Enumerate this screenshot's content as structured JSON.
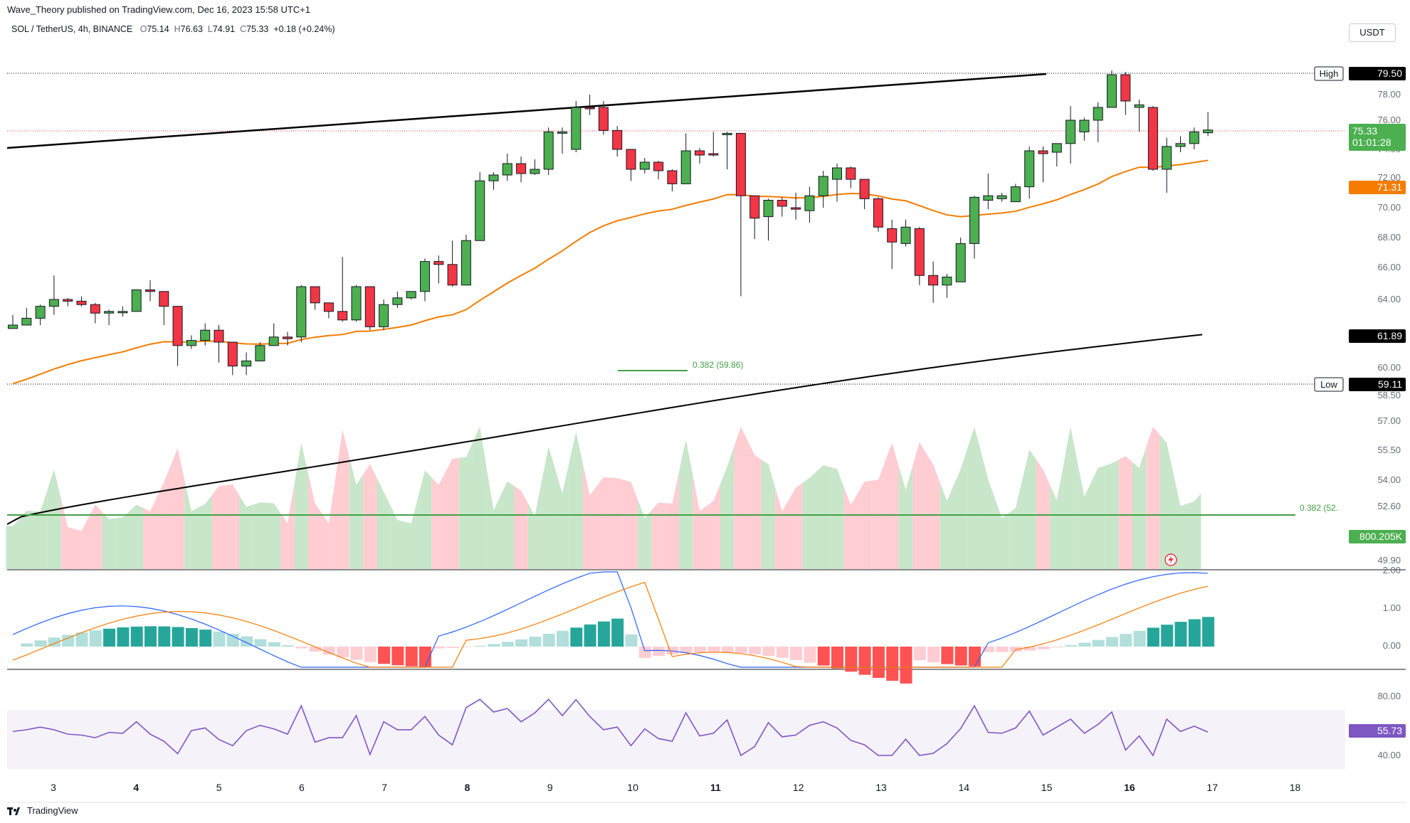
{
  "header": {
    "published": "Wave_Theory published on TradingView.com, Dec 16, 2023 15:58 UTC+1",
    "symbol": "SOL / TetherUS, 4h, BINANCE",
    "open_label": "O",
    "open": "75.14",
    "high_label": "H",
    "high": "76.63",
    "low_label": "L",
    "low": "74.91",
    "close_label": "C",
    "close": "75.33",
    "change": "+0.18 (+0.24%)",
    "currency": "USDT"
  },
  "footer": {
    "brand": "TradingView"
  },
  "colors": {
    "up": "#4caf50",
    "down": "#f23645",
    "ema_orange": "#f57c00",
    "ema_black": "#000000",
    "fib_green": "#43a047",
    "macd_blue": "#2962ff",
    "rsi_purple": "#7e57c2",
    "hist_up": "#26a69a",
    "hist_up_light": "#b2dfdb",
    "hist_down": "#ff5252",
    "hist_down_light": "#ffcdd2"
  },
  "chart_data": {
    "type": "candlestick",
    "title": "",
    "price_axis": {
      "ticks": [
        "78.00",
        "76.00",
        "74.00",
        "72.00",
        "70.00",
        "68.00",
        "66.00",
        "64.00",
        "60.00",
        "58.50",
        "57.00",
        "55.50",
        "54.00",
        "52.60",
        "49.90"
      ],
      "tick_values": [
        78,
        76,
        74,
        72,
        70,
        68,
        66,
        64,
        60,
        58.5,
        57,
        55.5,
        54,
        52.6,
        49.9
      ]
    },
    "x_axis": {
      "tick_labels": [
        "3",
        "4",
        "5",
        "6",
        "7",
        "8",
        "9",
        "10",
        "11",
        "12",
        "13",
        "14",
        "15",
        "16",
        "17",
        "18"
      ],
      "bold_labels": [
        "4",
        "8",
        "11",
        "16"
      ]
    },
    "ohlc": [
      [
        62.5,
        62.3,
        63.1,
        62.3
      ],
      [
        62.9,
        62.5,
        63.5,
        62.5
      ],
      [
        63.6,
        62.9,
        63.7,
        62.5
      ],
      [
        64.0,
        63.6,
        65.5,
        63.1
      ],
      [
        63.9,
        64.0,
        64.1,
        63.6
      ],
      [
        63.7,
        63.9,
        64.2,
        63.6
      ],
      [
        63.2,
        63.7,
        63.8,
        62.6
      ],
      [
        63.3,
        63.2,
        63.4,
        62.5
      ],
      [
        63.3,
        63.3,
        63.6,
        63.0
      ],
      [
        64.6,
        63.3,
        64.6,
        63.3
      ],
      [
        64.5,
        64.6,
        65.2,
        63.9
      ],
      [
        63.6,
        64.5,
        64.5,
        62.5
      ],
      [
        61.3,
        63.6,
        63.6,
        60.1
      ],
      [
        61.6,
        61.3,
        61.9,
        61.1
      ],
      [
        62.2,
        61.6,
        62.6,
        61.3
      ],
      [
        61.5,
        62.2,
        62.5,
        60.3
      ],
      [
        60.1,
        61.5,
        61.5,
        59.6
      ],
      [
        60.4,
        60.1,
        60.9,
        59.6
      ],
      [
        61.3,
        60.4,
        61.5,
        60.4
      ],
      [
        61.8,
        61.3,
        62.6,
        61.3
      ],
      [
        61.7,
        61.8,
        62.1,
        61.3
      ],
      [
        64.8,
        61.8,
        64.9,
        61.5
      ],
      [
        63.8,
        64.8,
        64.8,
        63.4
      ],
      [
        63.3,
        63.8,
        63.8,
        62.9
      ],
      [
        62.8,
        63.3,
        66.7,
        62.7
      ],
      [
        64.8,
        62.8,
        64.9,
        62.7
      ],
      [
        62.4,
        64.8,
        64.8,
        62.2
      ],
      [
        63.7,
        62.4,
        64.0,
        62.2
      ],
      [
        64.1,
        63.7,
        64.5,
        63.5
      ],
      [
        64.5,
        64.1,
        64.5,
        64.0
      ],
      [
        66.4,
        64.5,
        66.6,
        63.9
      ],
      [
        66.2,
        66.4,
        66.8,
        65.0
      ],
      [
        64.9,
        66.2,
        67.8,
        64.8
      ],
      [
        67.8,
        64.9,
        68.2,
        64.9
      ],
      [
        71.8,
        67.8,
        72.4,
        67.8
      ],
      [
        72.2,
        71.8,
        72.4,
        71.2
      ],
      [
        73.0,
        72.2,
        73.7,
        71.8
      ],
      [
        72.3,
        73.0,
        73.5,
        71.7
      ],
      [
        72.6,
        72.3,
        73.3,
        72.2
      ],
      [
        75.2,
        72.6,
        75.5,
        72.2
      ],
      [
        75.2,
        75.2,
        75.5,
        73.7
      ],
      [
        77.0,
        74.0,
        77.5,
        73.8
      ],
      [
        76.9,
        77.0,
        78.0,
        76.4
      ],
      [
        75.3,
        77.0,
        77.5,
        75.0
      ],
      [
        74.0,
        75.3,
        75.6,
        73.5
      ],
      [
        72.6,
        74.0,
        74.0,
        71.8
      ],
      [
        73.1,
        72.6,
        73.4,
        72.3
      ],
      [
        72.5,
        73.1,
        73.2,
        71.9
      ],
      [
        71.6,
        72.5,
        72.6,
        71.1
      ],
      [
        73.9,
        71.6,
        75.1,
        71.6
      ],
      [
        73.6,
        73.9,
        74.1,
        73.0
      ],
      [
        73.6,
        73.7,
        75.2,
        73.5
      ],
      [
        75.1,
        75.1,
        75.2,
        72.6
      ],
      [
        70.8,
        75.1,
        75.1,
        64.2
      ],
      [
        69.3,
        70.8,
        70.8,
        67.9
      ],
      [
        70.5,
        69.4,
        70.6,
        67.8
      ],
      [
        70.1,
        70.5,
        70.7,
        69.4
      ],
      [
        69.9,
        70.0,
        71.0,
        69.2
      ],
      [
        70.8,
        69.8,
        71.4,
        69.0
      ],
      [
        72.1,
        70.8,
        72.5,
        70.0
      ],
      [
        72.7,
        71.9,
        73.0,
        70.4
      ],
      [
        71.9,
        72.7,
        72.8,
        71.3
      ],
      [
        70.6,
        71.9,
        71.9,
        69.9
      ],
      [
        68.7,
        70.6,
        70.7,
        68.4
      ],
      [
        67.7,
        68.6,
        69.2,
        65.9
      ],
      [
        68.7,
        67.6,
        69.2,
        67.4
      ],
      [
        65.5,
        68.6,
        68.7,
        64.9
      ],
      [
        64.9,
        65.5,
        66.4,
        63.8
      ],
      [
        65.4,
        64.9,
        65.6,
        64.1
      ],
      [
        67.6,
        65.1,
        68.0,
        65.1
      ],
      [
        70.7,
        67.6,
        70.8,
        66.6
      ],
      [
        70.8,
        70.5,
        72.3,
        69.9
      ],
      [
        70.8,
        70.6,
        71.0,
        70.4
      ],
      [
        71.4,
        70.4,
        71.6,
        70.4
      ],
      [
        73.9,
        71.4,
        74.2,
        70.6
      ],
      [
        73.7,
        73.9,
        74.2,
        71.7
      ],
      [
        74.4,
        73.8,
        74.4,
        72.8
      ],
      [
        76.0,
        74.4,
        77.1,
        73.0
      ],
      [
        76.0,
        75.2,
        76.2,
        74.6
      ],
      [
        77.0,
        76.0,
        77.4,
        74.5
      ],
      [
        79.4,
        77.0,
        79.7,
        77.0
      ],
      [
        77.5,
        79.4,
        79.6,
        76.4
      ],
      [
        77.2,
        77.0,
        77.6,
        75.2
      ],
      [
        72.6,
        77.0,
        77.1,
        72.5
      ],
      [
        74.2,
        72.6,
        74.8,
        71.0
      ],
      [
        74.4,
        74.2,
        74.9,
        73.8
      ],
      [
        75.2,
        74.4,
        75.5,
        74.0
      ],
      [
        75.33,
        75.14,
        76.63,
        74.91
      ]
    ],
    "ema_orange_value": "71.31",
    "ema_black_value": "61.89",
    "trendline": "ascending resistance",
    "high_label": "High",
    "high_value": "79.50",
    "low_label": "Low",
    "low_value": "59.11",
    "last_price": "75.33",
    "countdown": "01:01:28",
    "fib_levels": [
      {
        "label": "0.382 (59.86)",
        "value": 59.86
      },
      {
        "label": "0.382 (52.",
        "value": 52.6
      }
    ],
    "volume_value": "800.205K",
    "macd_axis": [
      "2.00",
      "1.00",
      "0.00"
    ],
    "rsi_axis": [
      "80.00",
      "40.00"
    ],
    "rsi_value": "55.73"
  }
}
